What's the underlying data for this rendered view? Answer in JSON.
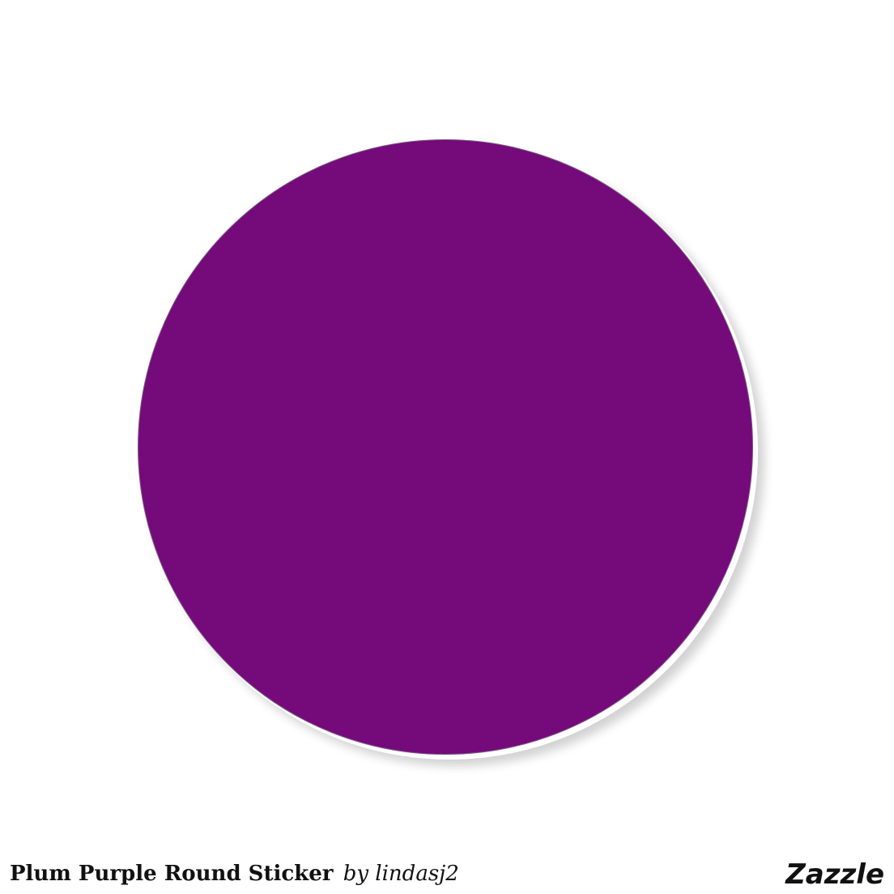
{
  "product": {
    "title": "Plum Purple Round Sticker",
    "byline": "by lindasj2",
    "sticker_color": "#750a7a",
    "shape": "circle"
  },
  "brand": {
    "logo_text": "Zazzle"
  }
}
